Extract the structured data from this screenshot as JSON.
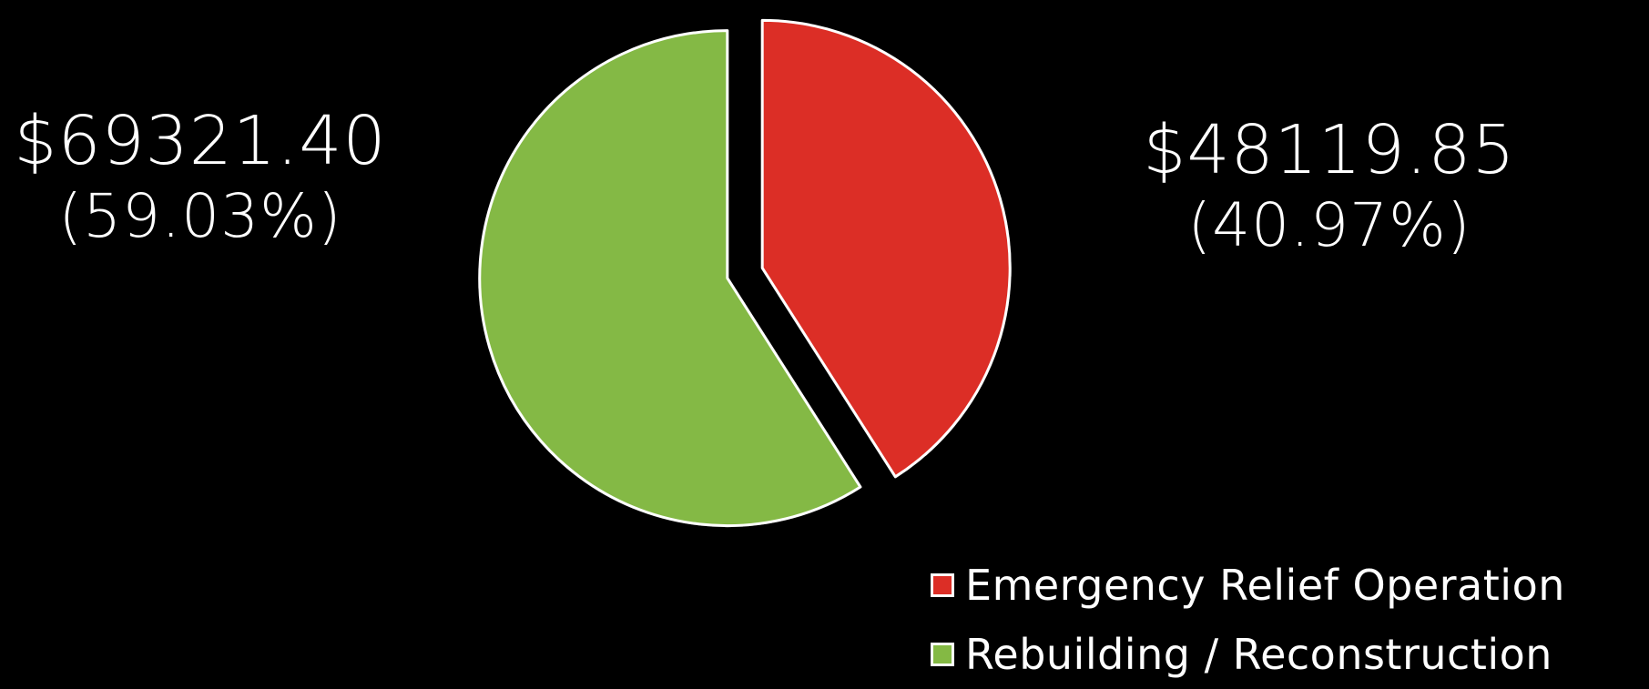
{
  "chart_data": {
    "type": "pie",
    "start_angle_deg": 0,
    "direction": "clockwise",
    "exploded": true,
    "slices": [
      {
        "name": "Emergency Relief Operation",
        "value": 48119.85,
        "value_label": "$48119.85",
        "percent_label": "(40.97%)",
        "color": "#dc2e26"
      },
      {
        "name": "Rebuilding / Reconstruction",
        "value": 69321.4,
        "value_label": "$69321.40",
        "percent_label": "(59.03%)",
        "color": "#84b944"
      }
    ],
    "legend_position": "bottom-right"
  }
}
